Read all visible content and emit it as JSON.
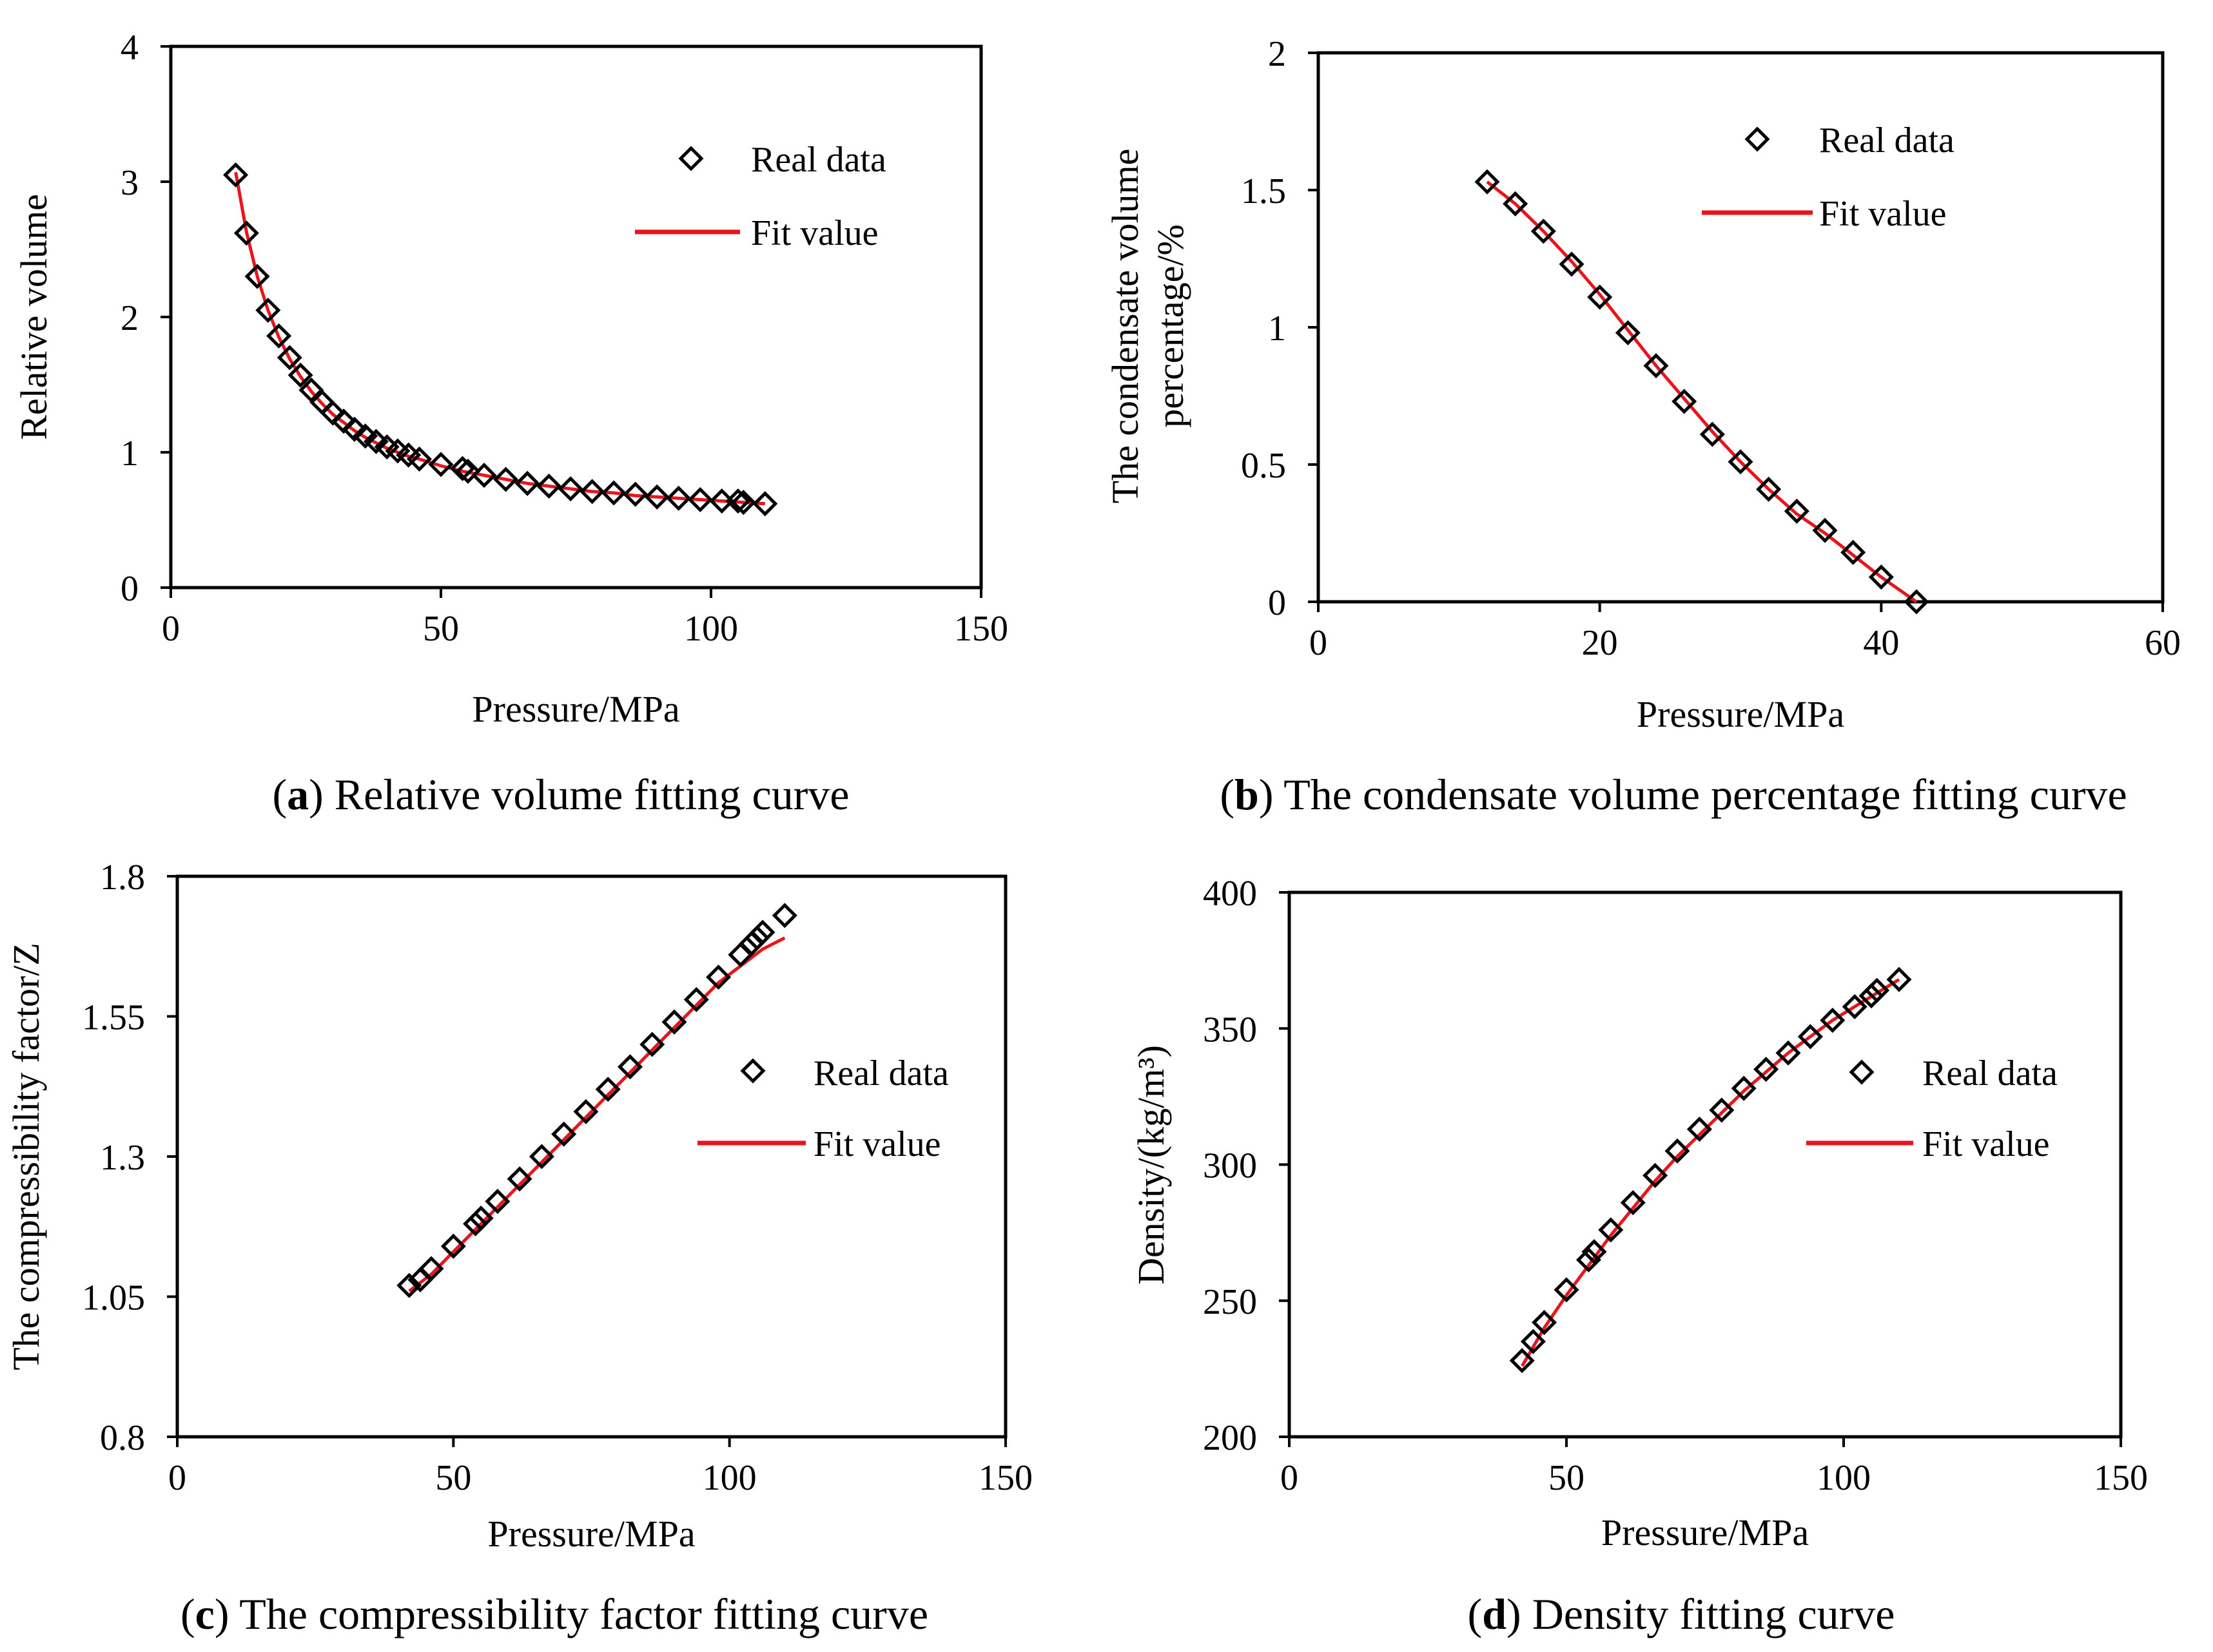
{
  "chart_data": [
    {
      "id": "a",
      "type": "scatter",
      "caption_letter": "a",
      "caption_text": "Relative volume fitting curve",
      "xlabel": "Pressure/MPa",
      "ylabel": [
        "Relative volume"
      ],
      "xlim": [
        0,
        150
      ],
      "ylim": [
        0,
        4
      ],
      "xticks": [
        "0",
        "50",
        "100",
        "150"
      ],
      "yticks": [
        "0",
        "1",
        "2",
        "3",
        "4"
      ],
      "legend": {
        "position": "top-right",
        "real_label": "Real data",
        "fit_label": "Fit value"
      },
      "series": [
        {
          "name": "Real data",
          "kind": "markers",
          "x": [
            12,
            14,
            16,
            18,
            20,
            22,
            24,
            26,
            28,
            30,
            32,
            34,
            36,
            38,
            40,
            42,
            44,
            46,
            50,
            54,
            55,
            58,
            62,
            66,
            70,
            74,
            78,
            82,
            86,
            90,
            94,
            98,
            102,
            105,
            106,
            110
          ],
          "y": [
            3.05,
            2.62,
            2.3,
            2.05,
            1.86,
            1.7,
            1.57,
            1.46,
            1.37,
            1.29,
            1.23,
            1.17,
            1.12,
            1.08,
            1.04,
            1.01,
            0.98,
            0.95,
            0.91,
            0.88,
            0.86,
            0.83,
            0.8,
            0.77,
            0.75,
            0.73,
            0.71,
            0.7,
            0.69,
            0.67,
            0.66,
            0.65,
            0.64,
            0.64,
            0.63,
            0.62
          ]
        },
        {
          "name": "Fit value",
          "kind": "line",
          "x": [
            12,
            14,
            16,
            18,
            20,
            22,
            24,
            26,
            28,
            30,
            32,
            34,
            36,
            38,
            40,
            42,
            44,
            46,
            50,
            54,
            58,
            62,
            66,
            70,
            74,
            78,
            82,
            86,
            90,
            94,
            98,
            102,
            106,
            110
          ],
          "y": [
            3.07,
            2.63,
            2.3,
            2.05,
            1.85,
            1.69,
            1.56,
            1.45,
            1.36,
            1.28,
            1.22,
            1.16,
            1.11,
            1.07,
            1.03,
            1.0,
            0.97,
            0.95,
            0.9,
            0.86,
            0.83,
            0.8,
            0.77,
            0.75,
            0.73,
            0.71,
            0.7,
            0.68,
            0.67,
            0.66,
            0.65,
            0.64,
            0.63,
            0.62
          ]
        }
      ]
    },
    {
      "id": "b",
      "type": "scatter",
      "caption_letter": "b",
      "caption_text": "The condensate volume percentage fitting curve",
      "xlabel": "Pressure/MPa",
      "ylabel": [
        "The condensate volume",
        "percentage/%"
      ],
      "xlim": [
        0,
        60
      ],
      "ylim": [
        0,
        2
      ],
      "xticks": [
        "0",
        "20",
        "40",
        "60"
      ],
      "yticks": [
        "0",
        "0.5",
        "1",
        "1.5",
        "2"
      ],
      "legend": {
        "position": "top-right",
        "real_label": "Real data",
        "fit_label": "Fit value"
      },
      "series": [
        {
          "name": "Real data",
          "kind": "markers",
          "x": [
            12,
            14,
            16,
            18,
            20,
            22,
            24,
            26,
            28,
            30,
            32,
            34,
            36,
            38,
            40,
            42.5
          ],
          "y": [
            1.53,
            1.45,
            1.35,
            1.23,
            1.11,
            0.98,
            0.86,
            0.73,
            0.61,
            0.51,
            0.41,
            0.33,
            0.26,
            0.18,
            0.09,
            0.0
          ]
        },
        {
          "name": "Fit value",
          "kind": "line",
          "x": [
            12,
            14,
            16,
            18,
            20,
            22,
            24,
            26,
            28,
            30,
            32,
            34,
            36,
            38,
            40,
            42.5
          ],
          "y": [
            1.53,
            1.45,
            1.35,
            1.24,
            1.12,
            0.99,
            0.86,
            0.74,
            0.62,
            0.51,
            0.41,
            0.32,
            0.25,
            0.17,
            0.09,
            0.0
          ]
        }
      ]
    },
    {
      "id": "c",
      "type": "scatter",
      "caption_letter": "c",
      "caption_text": "The compressibility factor fitting curve",
      "xlabel": "Pressure/MPa",
      "ylabel": [
        "The compressibility factor/Z"
      ],
      "xlim": [
        0,
        150
      ],
      "ylim": [
        0.8,
        1.8
      ],
      "xticks": [
        "0",
        "50",
        "100",
        "150"
      ],
      "yticks": [
        "0.8",
        "1.05",
        "1.3",
        "1.55",
        "1.8"
      ],
      "legend": {
        "position": "right",
        "real_label": "Real data",
        "fit_label": "Fit value"
      },
      "series": [
        {
          "name": "Real data",
          "kind": "markers",
          "x": [
            42,
            44,
            46,
            50,
            54,
            55,
            58,
            62,
            66,
            70,
            74,
            78,
            82,
            86,
            90,
            94,
            98,
            102,
            104,
            105,
            106,
            110
          ],
          "y": [
            1.07,
            1.08,
            1.1,
            1.14,
            1.18,
            1.19,
            1.22,
            1.26,
            1.3,
            1.34,
            1.38,
            1.42,
            1.46,
            1.5,
            1.54,
            1.58,
            1.62,
            1.66,
            1.68,
            1.69,
            1.7,
            1.73
          ]
        },
        {
          "name": "Fit value",
          "kind": "line",
          "x": [
            42,
            46,
            50,
            54,
            58,
            62,
            66,
            70,
            74,
            78,
            82,
            86,
            90,
            94,
            98,
            102,
            106,
            110
          ],
          "y": [
            1.06,
            1.09,
            1.13,
            1.17,
            1.21,
            1.25,
            1.29,
            1.33,
            1.37,
            1.41,
            1.45,
            1.49,
            1.53,
            1.57,
            1.61,
            1.64,
            1.67,
            1.69
          ]
        }
      ]
    },
    {
      "id": "d",
      "type": "scatter",
      "caption_letter": "d",
      "caption_text": "Density fitting curve",
      "xlabel": "Pressure/MPa",
      "ylabel": [
        "Density/(kg/m³)"
      ],
      "xlim": [
        0,
        150
      ],
      "ylim": [
        200,
        400
      ],
      "xticks": [
        "0",
        "50",
        "100",
        "150"
      ],
      "yticks": [
        "200",
        "250",
        "300",
        "350",
        "400"
      ],
      "legend": {
        "position": "right",
        "real_label": "Real data",
        "fit_label": "Fit value"
      },
      "series": [
        {
          "name": "Real data",
          "kind": "markers",
          "x": [
            42,
            44,
            46,
            50,
            54,
            55,
            58,
            62,
            66,
            70,
            74,
            78,
            82,
            86,
            90,
            94,
            98,
            102,
            105,
            106,
            110
          ],
          "y": [
            228,
            235,
            242,
            254,
            265,
            268,
            276,
            286,
            296,
            305,
            313,
            320,
            328,
            335,
            341,
            347,
            353,
            358,
            362,
            364,
            368
          ]
        },
        {
          "name": "Fit value",
          "kind": "line",
          "x": [
            42,
            46,
            50,
            54,
            58,
            62,
            66,
            70,
            74,
            78,
            82,
            86,
            90,
            94,
            98,
            102,
            106,
            110
          ],
          "y": [
            226,
            240,
            252,
            263,
            274,
            284,
            294,
            303,
            311,
            319,
            327,
            334,
            341,
            347,
            353,
            358,
            363,
            368
          ]
        }
      ]
    }
  ]
}
